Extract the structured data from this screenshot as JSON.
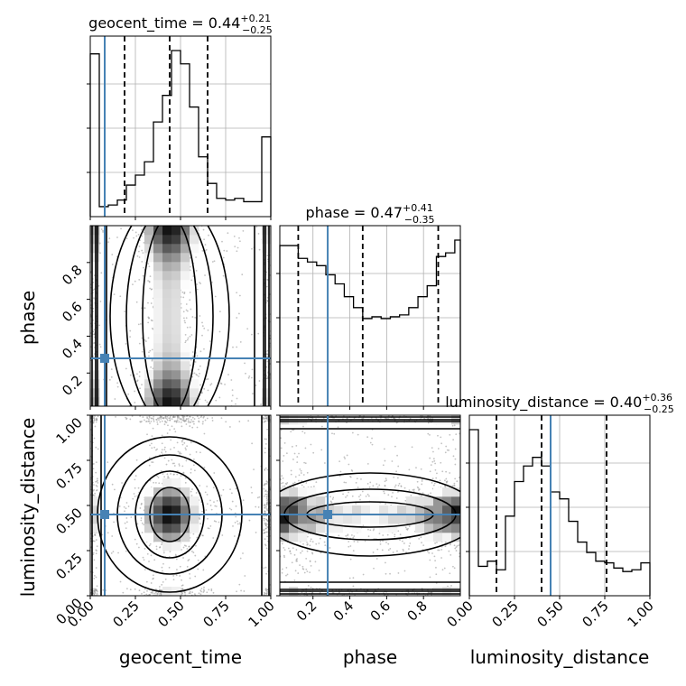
{
  "chart_data": {
    "type": "corner",
    "parameters": [
      "geocent_time",
      "phase",
      "luminosity_distance"
    ],
    "colors": {
      "truth": "#4682b4",
      "line": "#000000",
      "grid": "#b0b0b0",
      "points": "#9a9a9a"
    },
    "truth": {
      "geocent_time": 0.08,
      "phase": 0.28,
      "luminosity_distance": 0.45
    },
    "titles": [
      {
        "label": "geocent_time = 0.44",
        "plus": "+0.21",
        "minus": "−0.25"
      },
      {
        "label": "phase = 0.47",
        "plus": "+0.41",
        "minus": "−0.35"
      },
      {
        "label": "luminosity_distance = 0.40",
        "plus": "+0.36",
        "minus": "−0.25"
      }
    ],
    "axis_labels": {
      "x": [
        "geocent_time",
        "phase",
        "luminosity_distance"
      ],
      "y": [
        "phase",
        "luminosity_distance"
      ]
    },
    "ranges": {
      "geocent_time": [
        0,
        1
      ],
      "phase": [
        0.02,
        1
      ],
      "luminosity_distance": [
        0,
        1
      ]
    },
    "ticks": {
      "geocent_time": [
        "0.00",
        "0.25",
        "0.50",
        "0.75",
        "1.00"
      ],
      "phase": [
        "0.2",
        "0.4",
        "0.6",
        "0.8"
      ],
      "luminosity_distance": [
        "0.00",
        "0.25",
        "0.50",
        "0.75",
        "1.00"
      ]
    },
    "histograms": [
      {
        "param": "geocent_time",
        "bins": [
          0.0,
          0.05,
          0.1,
          0.15,
          0.2,
          0.25,
          0.3,
          0.35,
          0.4,
          0.45,
          0.5,
          0.55,
          0.6,
          0.65,
          0.7,
          0.75,
          0.8,
          0.85,
          0.9,
          0.95,
          1.0
        ],
        "counts": [
          0.98,
          0.06,
          0.07,
          0.1,
          0.19,
          0.25,
          0.33,
          0.57,
          0.73,
          1.0,
          0.92,
          0.66,
          0.36,
          0.2,
          0.11,
          0.1,
          0.11,
          0.09,
          0.09,
          0.48
        ],
        "quantiles": [
          0.19,
          0.44,
          0.65
        ]
      },
      {
        "param": "phase",
        "bins": [
          0.02,
          0.07,
          0.12,
          0.17,
          0.22,
          0.27,
          0.32,
          0.37,
          0.42,
          0.47,
          0.52,
          0.57,
          0.62,
          0.67,
          0.72,
          0.77,
          0.82,
          0.87,
          0.92,
          0.97,
          1.0
        ],
        "counts": [
          0.88,
          0.88,
          0.81,
          0.79,
          0.77,
          0.72,
          0.67,
          0.6,
          0.54,
          0.48,
          0.49,
          0.48,
          0.49,
          0.5,
          0.54,
          0.6,
          0.66,
          0.82,
          0.84,
          0.91
        ],
        "quantiles": [
          0.12,
          0.47,
          0.88
        ]
      },
      {
        "param": "luminosity_distance",
        "bins": [
          0.0,
          0.05,
          0.1,
          0.15,
          0.2,
          0.25,
          0.3,
          0.35,
          0.4,
          0.45,
          0.5,
          0.55,
          0.6,
          0.65,
          0.7,
          0.75,
          0.8,
          0.85,
          0.9,
          0.95,
          1.0
        ],
        "counts": [
          0.96,
          0.17,
          0.2,
          0.15,
          0.46,
          0.66,
          0.75,
          0.8,
          0.75,
          0.6,
          0.56,
          0.43,
          0.31,
          0.25,
          0.2,
          0.19,
          0.16,
          0.14,
          0.15,
          0.19
        ],
        "quantiles": [
          0.15,
          0.4,
          0.76
        ]
      }
    ]
  }
}
